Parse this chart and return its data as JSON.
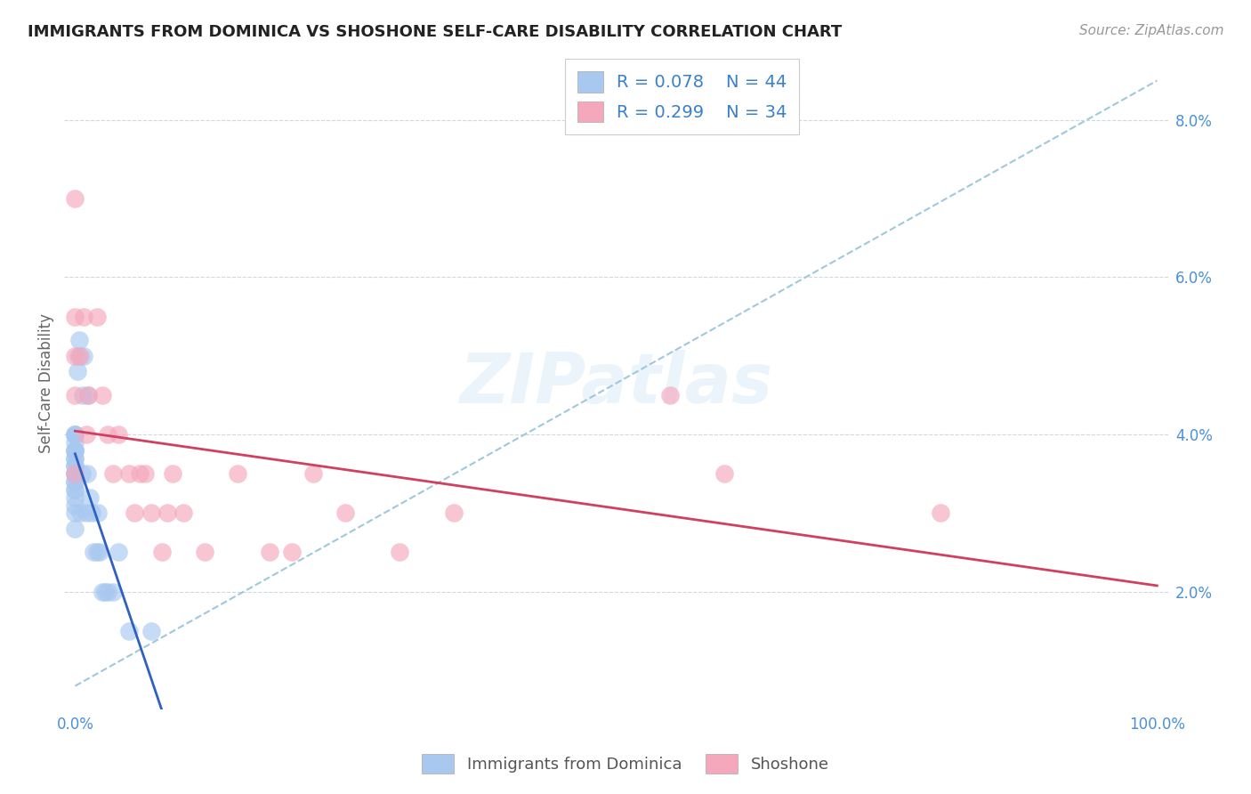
{
  "title": "IMMIGRANTS FROM DOMINICA VS SHOSHONE SELF-CARE DISABILITY CORRELATION CHART",
  "source": "Source: ZipAtlas.com",
  "ylabel": "Self-Care Disability",
  "watermark": "ZIPatlas",
  "legend_label1": "Immigrants from Dominica",
  "legend_label2": "Shoshone",
  "r1": 0.078,
  "n1": 44,
  "r2": 0.299,
  "n2": 34,
  "color1": "#a8c8f0",
  "color2": "#f5a8bc",
  "line1_color": "#3060c0",
  "line2_color": "#d04060",
  "dash_color": "#a0c8dc",
  "bg_color": "#ffffff",
  "dominica_x": [
    0.0,
    0.0,
    0.0,
    0.0,
    0.0,
    0.0,
    0.0,
    0.0,
    0.0,
    0.0,
    0.0,
    0.0,
    0.0,
    0.0,
    0.0,
    0.0,
    0.0,
    0.0,
    0.0,
    0.0,
    0.0,
    0.2,
    0.3,
    0.4,
    0.5,
    0.6,
    0.7,
    0.8,
    1.0,
    1.1,
    1.2,
    1.4,
    1.5,
    1.7,
    2.0,
    2.1,
    2.3,
    2.5,
    2.8,
    3.0,
    3.5,
    4.0,
    5.0,
    7.0
  ],
  "dominica_y": [
    3.5,
    3.5,
    3.6,
    3.6,
    3.7,
    3.7,
    3.8,
    3.8,
    3.8,
    3.9,
    4.0,
    4.0,
    4.0,
    3.3,
    3.3,
    3.4,
    3.4,
    3.2,
    3.1,
    3.0,
    2.8,
    4.8,
    5.0,
    5.2,
    3.0,
    3.5,
    4.5,
    5.0,
    3.0,
    3.5,
    4.5,
    3.2,
    3.0,
    2.5,
    2.5,
    3.0,
    2.5,
    2.0,
    2.0,
    2.0,
    2.0,
    2.5,
    1.5,
    1.5
  ],
  "shoshone_x": [
    0.0,
    0.0,
    0.0,
    0.0,
    0.0,
    0.5,
    0.8,
    1.0,
    1.2,
    2.0,
    2.5,
    3.0,
    3.5,
    4.0,
    5.0,
    5.5,
    6.0,
    6.5,
    7.0,
    8.0,
    8.5,
    9.0,
    10.0,
    12.0,
    15.0,
    18.0,
    20.0,
    22.0,
    25.0,
    30.0,
    35.0,
    55.0,
    60.0,
    80.0
  ],
  "shoshone_y": [
    3.5,
    4.5,
    5.0,
    5.5,
    7.0,
    5.0,
    5.5,
    4.0,
    4.5,
    5.5,
    4.5,
    4.0,
    3.5,
    4.0,
    3.5,
    3.0,
    3.5,
    3.5,
    3.0,
    2.5,
    3.0,
    3.5,
    3.0,
    2.5,
    3.5,
    2.5,
    2.5,
    3.5,
    3.0,
    2.5,
    3.0,
    4.5,
    3.5,
    3.0
  ],
  "xlim": [
    -1,
    101
  ],
  "ylim": [
    0.5,
    8.8
  ],
  "yticks": [
    2.0,
    4.0,
    6.0,
    8.0
  ],
  "xticks": [
    0,
    100
  ],
  "title_fontsize": 13,
  "axis_tick_fontsize": 12
}
